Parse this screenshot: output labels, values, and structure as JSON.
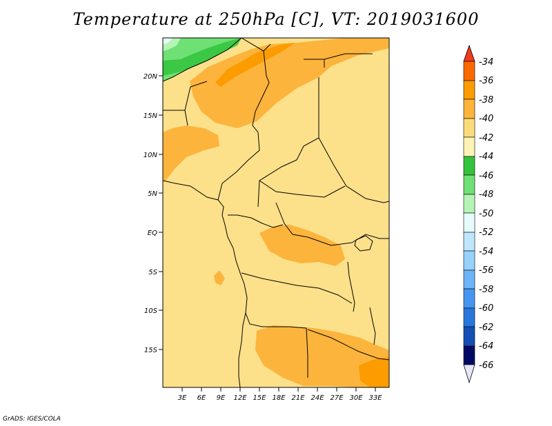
{
  "title": "Temperature at 250hPa [C], VT: 2019031600",
  "credit": "GrADS: IGES/COLA",
  "map": {
    "lat_range": [
      -20,
      25
    ],
    "lon_range": [
      0,
      35
    ],
    "lat_ticks": [
      "20N",
      "15N",
      "10N",
      "5N",
      "EQ",
      "5S",
      "10S",
      "15S"
    ],
    "lon_ticks": [
      "3E",
      "6E",
      "9E",
      "12E",
      "15E",
      "18E",
      "21E",
      "24E",
      "27E",
      "30E",
      "33E"
    ],
    "dominant_range": "-42 to -40",
    "warm_areas": [
      "Sahara (Niger/Algeria) -40 to -38",
      "southern Africa (Zambia/Botswana) -40 to -38"
    ],
    "cool_area": "northwest corner -48 to -44"
  },
  "colorbar": {
    "levels": [
      "-34",
      "-36",
      "-38",
      "-40",
      "-42",
      "-44",
      "-46",
      "-48",
      "-50",
      "-52",
      "-54",
      "-56",
      "-58",
      "-60",
      "-62",
      "-64",
      "-66"
    ],
    "colors": [
      "#f03c1e",
      "#fa6a00",
      "#fc9c00",
      "#fcb43c",
      "#fcdc7a",
      "#fef2b4",
      "#33c33c",
      "#6ee074",
      "#b4f4b4",
      "#e6fcfc",
      "#bee6fc",
      "#96d2fa",
      "#6eb4f8",
      "#4696f0",
      "#2878dc",
      "#1450b4",
      "#0a2896",
      "#000a64",
      "#e6e6fc"
    ]
  }
}
